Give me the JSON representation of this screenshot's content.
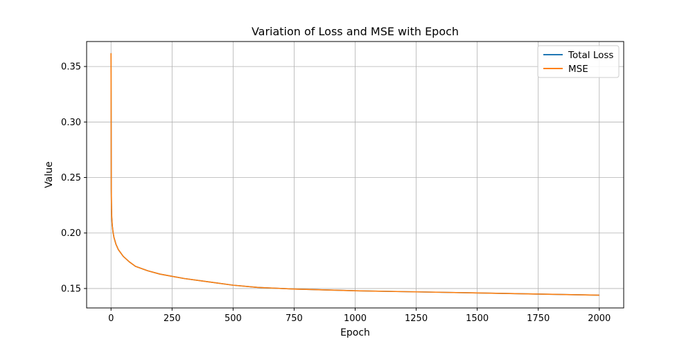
{
  "chart_data": {
    "type": "line",
    "title": "Variation of Loss and MSE with Epoch",
    "xlabel": "Epoch",
    "ylabel": "Value",
    "xlim": [
      -100,
      2100
    ],
    "ylim": [
      0.1325,
      0.3725
    ],
    "xticks": [
      0,
      250,
      500,
      750,
      1000,
      1250,
      1500,
      1750,
      2000
    ],
    "xtick_labels": [
      "0",
      "250",
      "500",
      "750",
      "1000",
      "1250",
      "1500",
      "1750",
      "2000"
    ],
    "yticks": [
      0.15,
      0.2,
      0.25,
      0.3,
      0.35
    ],
    "ytick_labels": [
      "0.15",
      "0.20",
      "0.25",
      "0.30",
      "0.35"
    ],
    "grid": true,
    "legend_position": "top-right",
    "series": [
      {
        "name": "Total Loss",
        "color": "#1f77b4",
        "x": [
          0,
          1,
          2,
          3,
          5,
          8,
          12,
          20,
          30,
          50,
          75,
          100,
          150,
          200,
          250,
          300,
          400,
          500,
          600,
          750,
          1000,
          1250,
          1500,
          1750,
          2000
        ],
        "y": [
          0.362,
          0.24,
          0.222,
          0.214,
          0.207,
          0.201,
          0.196,
          0.19,
          0.185,
          0.179,
          0.174,
          0.17,
          0.166,
          0.163,
          0.161,
          0.159,
          0.156,
          0.153,
          0.151,
          0.1495,
          0.148,
          0.147,
          0.146,
          0.145,
          0.144
        ]
      },
      {
        "name": "MSE",
        "color": "#ff7f0e",
        "x": [
          0,
          1,
          2,
          3,
          5,
          8,
          12,
          20,
          30,
          50,
          75,
          100,
          150,
          200,
          250,
          300,
          400,
          500,
          600,
          750,
          1000,
          1250,
          1500,
          1750,
          2000
        ],
        "y": [
          0.362,
          0.24,
          0.222,
          0.214,
          0.207,
          0.201,
          0.196,
          0.19,
          0.185,
          0.179,
          0.174,
          0.17,
          0.166,
          0.163,
          0.161,
          0.159,
          0.156,
          0.153,
          0.151,
          0.1495,
          0.148,
          0.147,
          0.146,
          0.145,
          0.144
        ]
      }
    ]
  }
}
